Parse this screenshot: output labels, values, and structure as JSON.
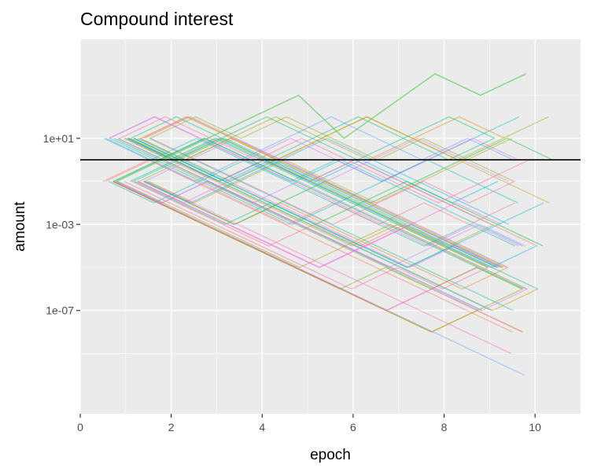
{
  "chart_data": {
    "type": "line",
    "title": "Compound interest",
    "xlabel": "epoch",
    "ylabel": "amount",
    "x_scale": "linear",
    "y_scale": "log10",
    "xlim": [
      0,
      11
    ],
    "ylim_log10": [
      -11.8,
      5.6
    ],
    "x_ticks": [
      0,
      2,
      4,
      6,
      8,
      10
    ],
    "y_ticks": [
      {
        "value": 10.0,
        "label": "1e+01"
      },
      {
        "value": 0.001,
        "label": "1e-03"
      },
      {
        "value": 1e-07,
        "label": "1e-07"
      }
    ],
    "grid": true,
    "legend": "none",
    "hline": {
      "y": 1
    },
    "highlight_series": {
      "color": "#6fcf6f",
      "points": [
        {
          "x": 0.8,
          "y": 0.1
        },
        {
          "x": 4.8,
          "y": 1000
        },
        {
          "x": 5.8,
          "y": 10
        },
        {
          "x": 7.8,
          "y": 10000
        },
        {
          "x": 8.8,
          "y": 1000
        },
        {
          "x": 9.8,
          "y": 10000
        }
      ]
    },
    "series_generator": {
      "description": "approx 60 random walk series; each epoch the amount is multiplied by 10 or divided by 10",
      "count": 60,
      "start_x_range": [
        0.5,
        1.6
      ],
      "start_values": [
        0.1,
        10
      ],
      "end_x_range": [
        9.6,
        10.5
      ],
      "step_factor": 10,
      "seed": 7
    },
    "palette": [
      "#f8766d",
      "#e58700",
      "#c99800",
      "#a3a500",
      "#6bb100",
      "#00ba38",
      "#00bf7d",
      "#00c0af",
      "#00bcd8",
      "#00b0f6",
      "#619cff",
      "#b983ff",
      "#e76bf3",
      "#fd61d1",
      "#ff67a4"
    ]
  }
}
